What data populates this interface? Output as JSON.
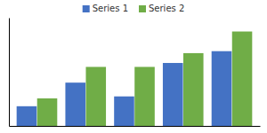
{
  "chart_data": {
    "type": "bar",
    "categories": [
      null,
      null,
      null,
      null,
      null
    ],
    "series": [
      {
        "name": "Series 1",
        "color": "#4472C4",
        "values": [
          1.0,
          2.2,
          1.5,
          3.2,
          3.8
        ]
      },
      {
        "name": "Series 2",
        "color": "#70AD47",
        "values": [
          1.4,
          3.0,
          3.0,
          3.7,
          4.8
        ]
      }
    ],
    "ylim": [
      0,
      5.5
    ],
    "tick_labels": false,
    "grid": false,
    "legend": "top"
  }
}
